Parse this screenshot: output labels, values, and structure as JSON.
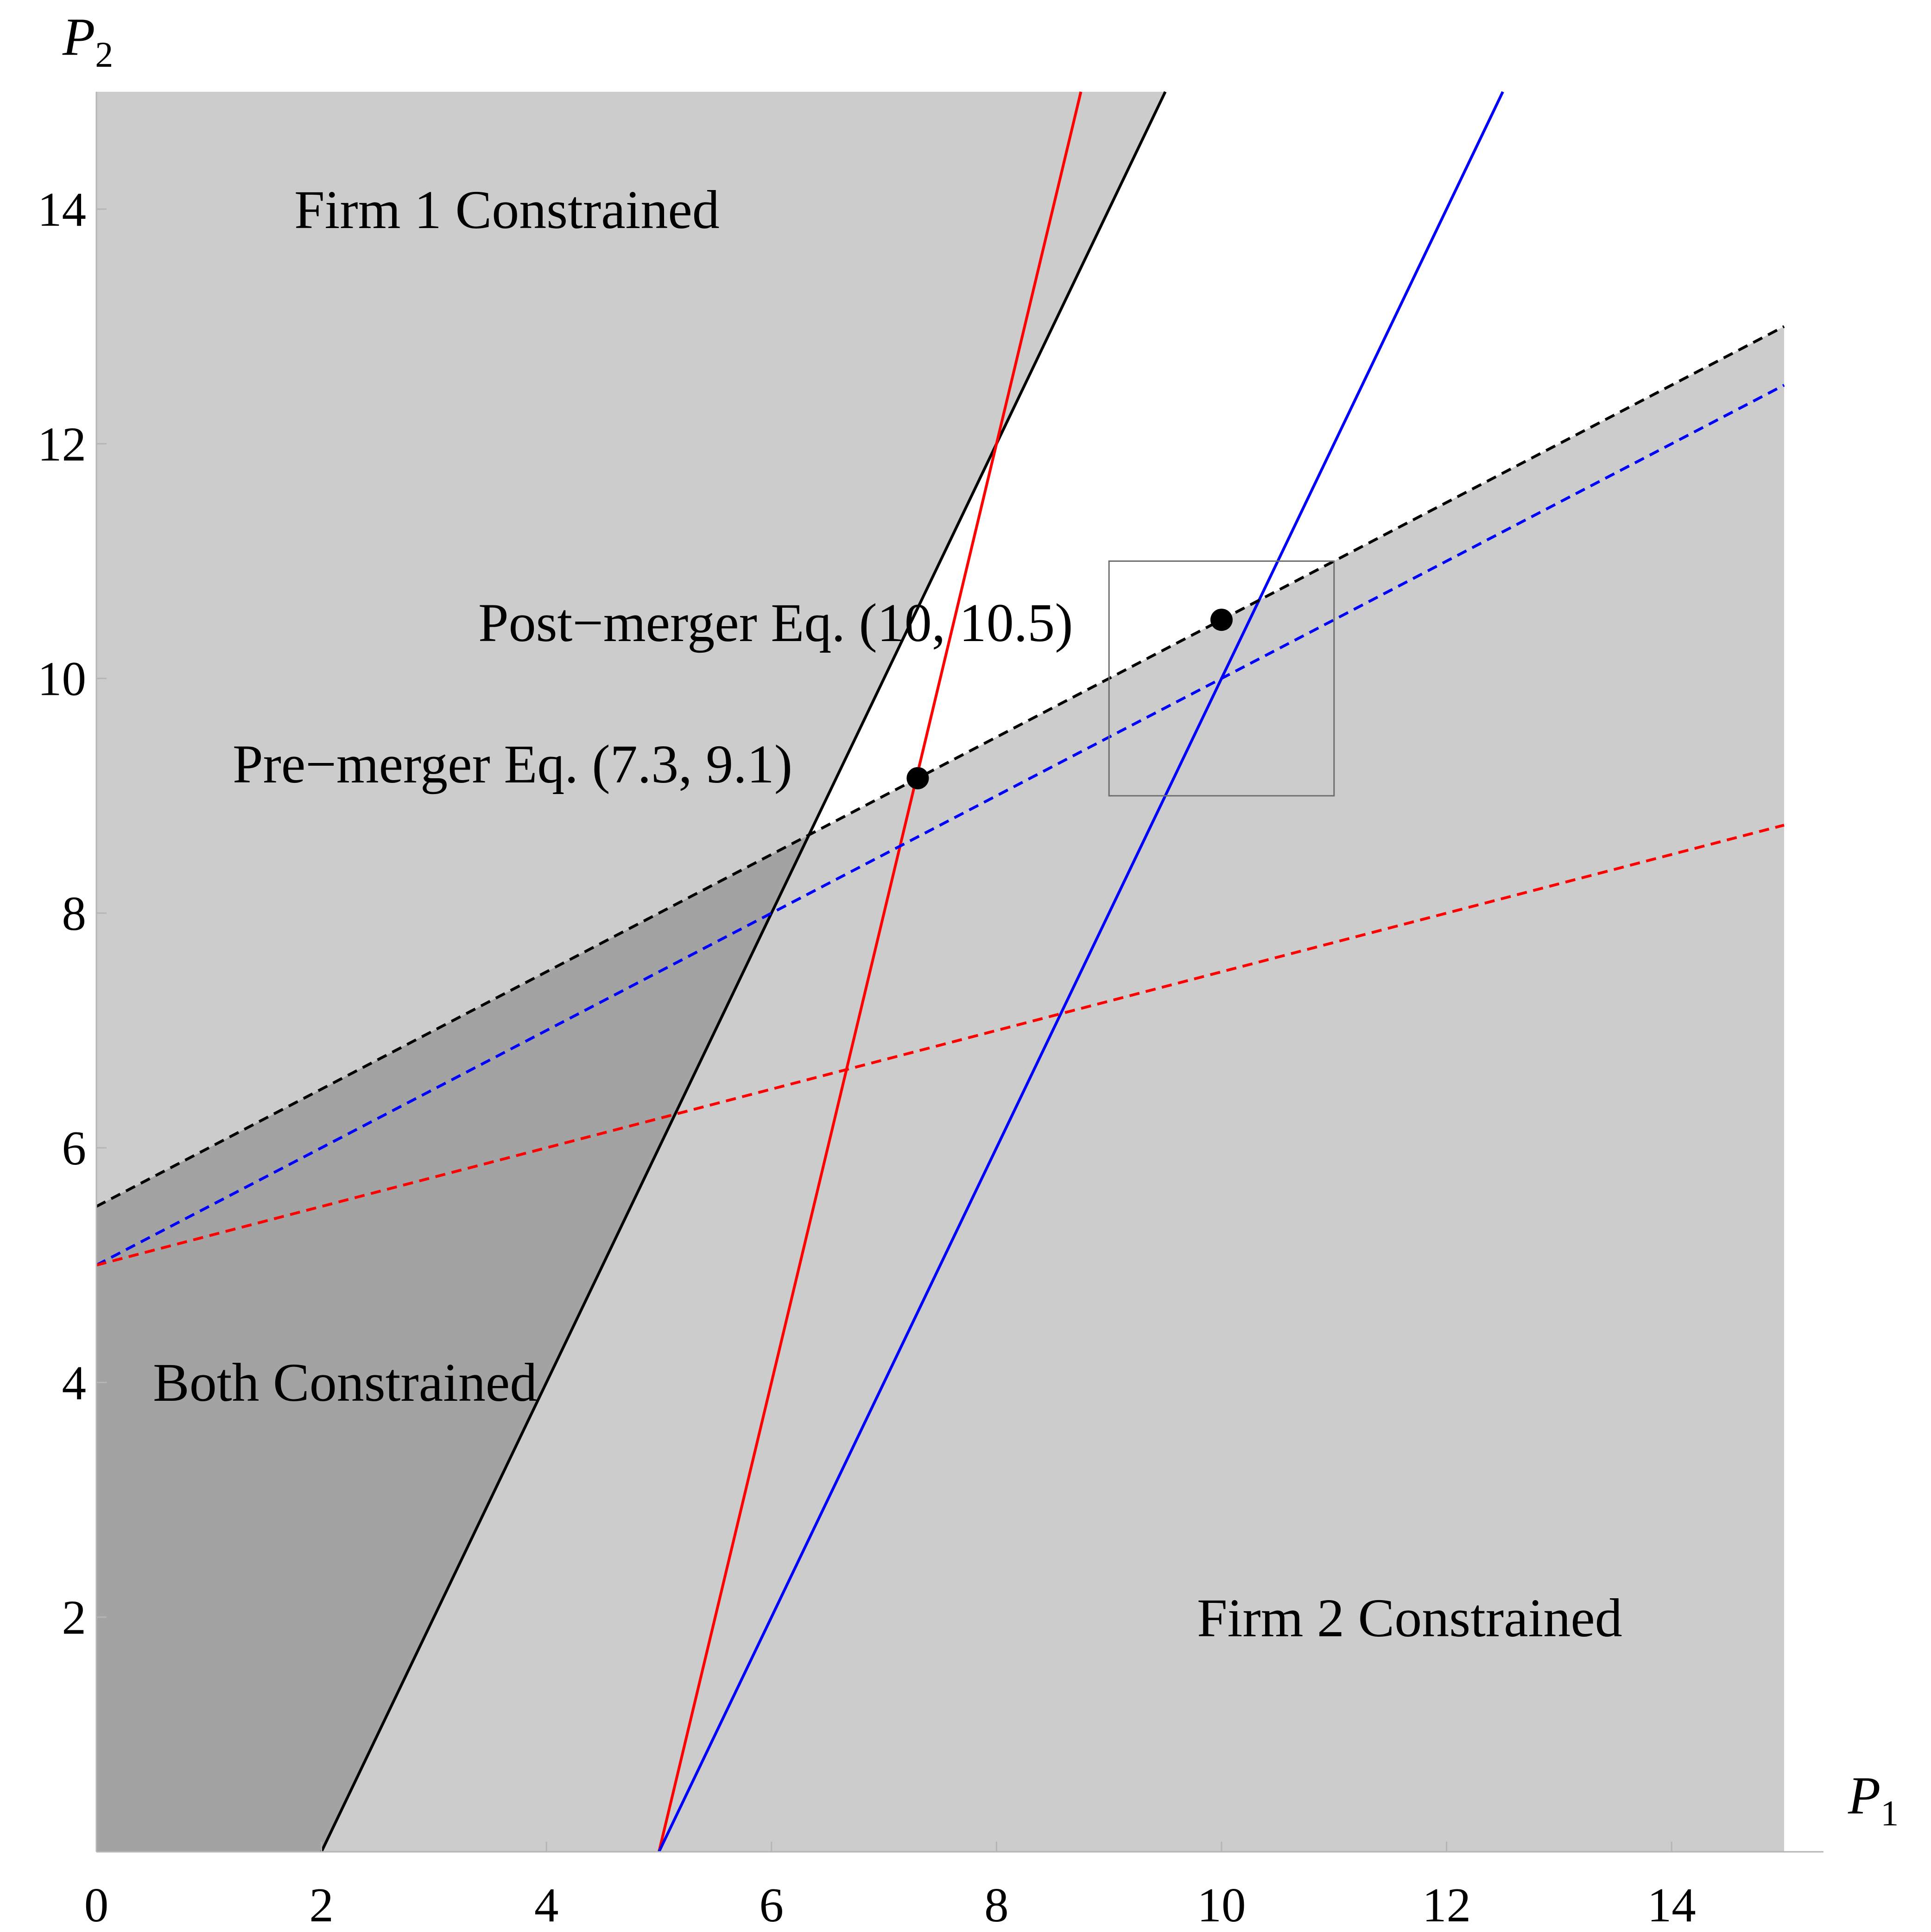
{
  "chart_data": {
    "type": "line",
    "xlabel": {
      "base": "P",
      "sub": "1"
    },
    "ylabel": {
      "base": "P",
      "sub": "2"
    },
    "xlim": [
      0,
      15
    ],
    "ylim": [
      0,
      15
    ],
    "xticks": [
      0,
      2,
      4,
      6,
      8,
      10,
      12,
      14
    ],
    "yticks": [
      2,
      4,
      6,
      8,
      10,
      12,
      14
    ],
    "grid": false,
    "legend": "none",
    "regions": [
      {
        "label": "Firm 1 Constrained",
        "color": "#cccccc"
      },
      {
        "label": "Firm 2 Constrained",
        "color": "#cccccc"
      },
      {
        "label": "Both Constrained",
        "color": "#a3a3a3"
      }
    ],
    "series": [
      {
        "color": "#000000",
        "style": "solid",
        "points": [
          [
            2,
            0
          ],
          [
            9.5,
            15
          ]
        ]
      },
      {
        "color": "#ff0000",
        "style": "solid",
        "points": [
          [
            5,
            0
          ],
          [
            8.75,
            15
          ]
        ]
      },
      {
        "color": "#0000ff",
        "style": "solid",
        "points": [
          [
            5,
            0
          ],
          [
            12.5,
            15
          ]
        ]
      },
      {
        "color": "#000000",
        "style": "dashed",
        "points": [
          [
            0,
            5.5
          ],
          [
            15,
            13
          ]
        ]
      },
      {
        "color": "#0000ff",
        "style": "dashed",
        "points": [
          [
            0,
            5
          ],
          [
            15,
            12.5
          ]
        ]
      },
      {
        "color": "#ff0000",
        "style": "dashed",
        "points": [
          [
            0,
            5
          ],
          [
            15,
            8.75
          ]
        ]
      }
    ],
    "equilibria": [
      {
        "label": "Pre−merger Eq. (7.3, 9.1)",
        "x": 7.3,
        "y": 9.15
      },
      {
        "label": "Post−merger Eq. (10, 10.5)",
        "x": 10,
        "y": 10.5
      }
    ],
    "inset_box": {
      "x": [
        9,
        11
      ],
      "y": [
        9,
        11
      ]
    }
  }
}
